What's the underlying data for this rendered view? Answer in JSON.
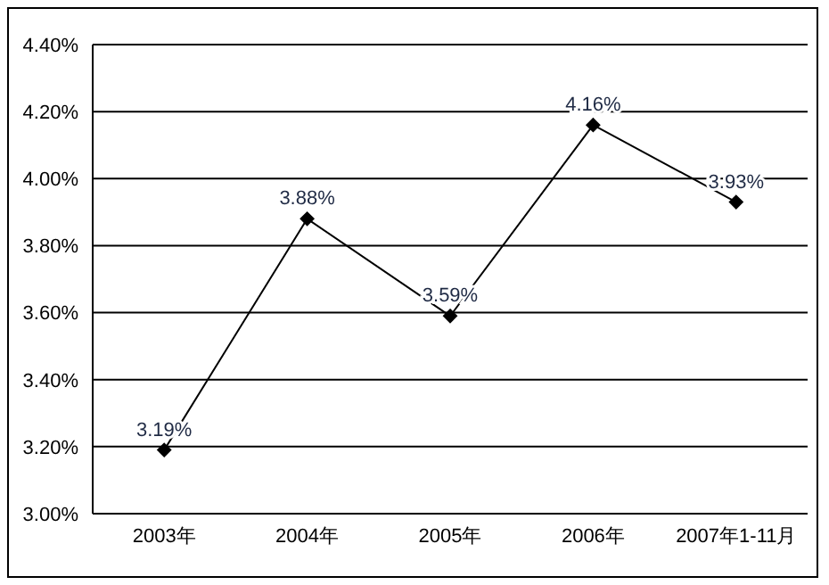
{
  "chart_data": {
    "type": "line",
    "categories": [
      "2003年",
      "2004年",
      "2005年",
      "2006年",
      "2007年1-11月"
    ],
    "series": [
      {
        "color": "#000000",
        "values": [
          3.19,
          3.88,
          3.59,
          4.16,
          3.93
        ],
        "value_labels": [
          "3.19%",
          "3.88%",
          "3.59%",
          "4.16%",
          "3.93%"
        ]
      }
    ],
    "ylim": [
      3.0,
      4.4
    ],
    "yticks": [
      {
        "value": 3.0,
        "label": "3.00%"
      },
      {
        "value": 3.2,
        "label": "3.20%"
      },
      {
        "value": 3.4,
        "label": "3.40%"
      },
      {
        "value": 3.6,
        "label": "3.60%"
      },
      {
        "value": 3.8,
        "label": "3.80%"
      },
      {
        "value": 4.0,
        "label": "4.00%"
      },
      {
        "value": 4.2,
        "label": "4.20%"
      },
      {
        "value": 4.4,
        "label": "4.40%"
      }
    ],
    "grid": "y",
    "marker": "diamond",
    "line_style": "solid",
    "legend": false
  }
}
